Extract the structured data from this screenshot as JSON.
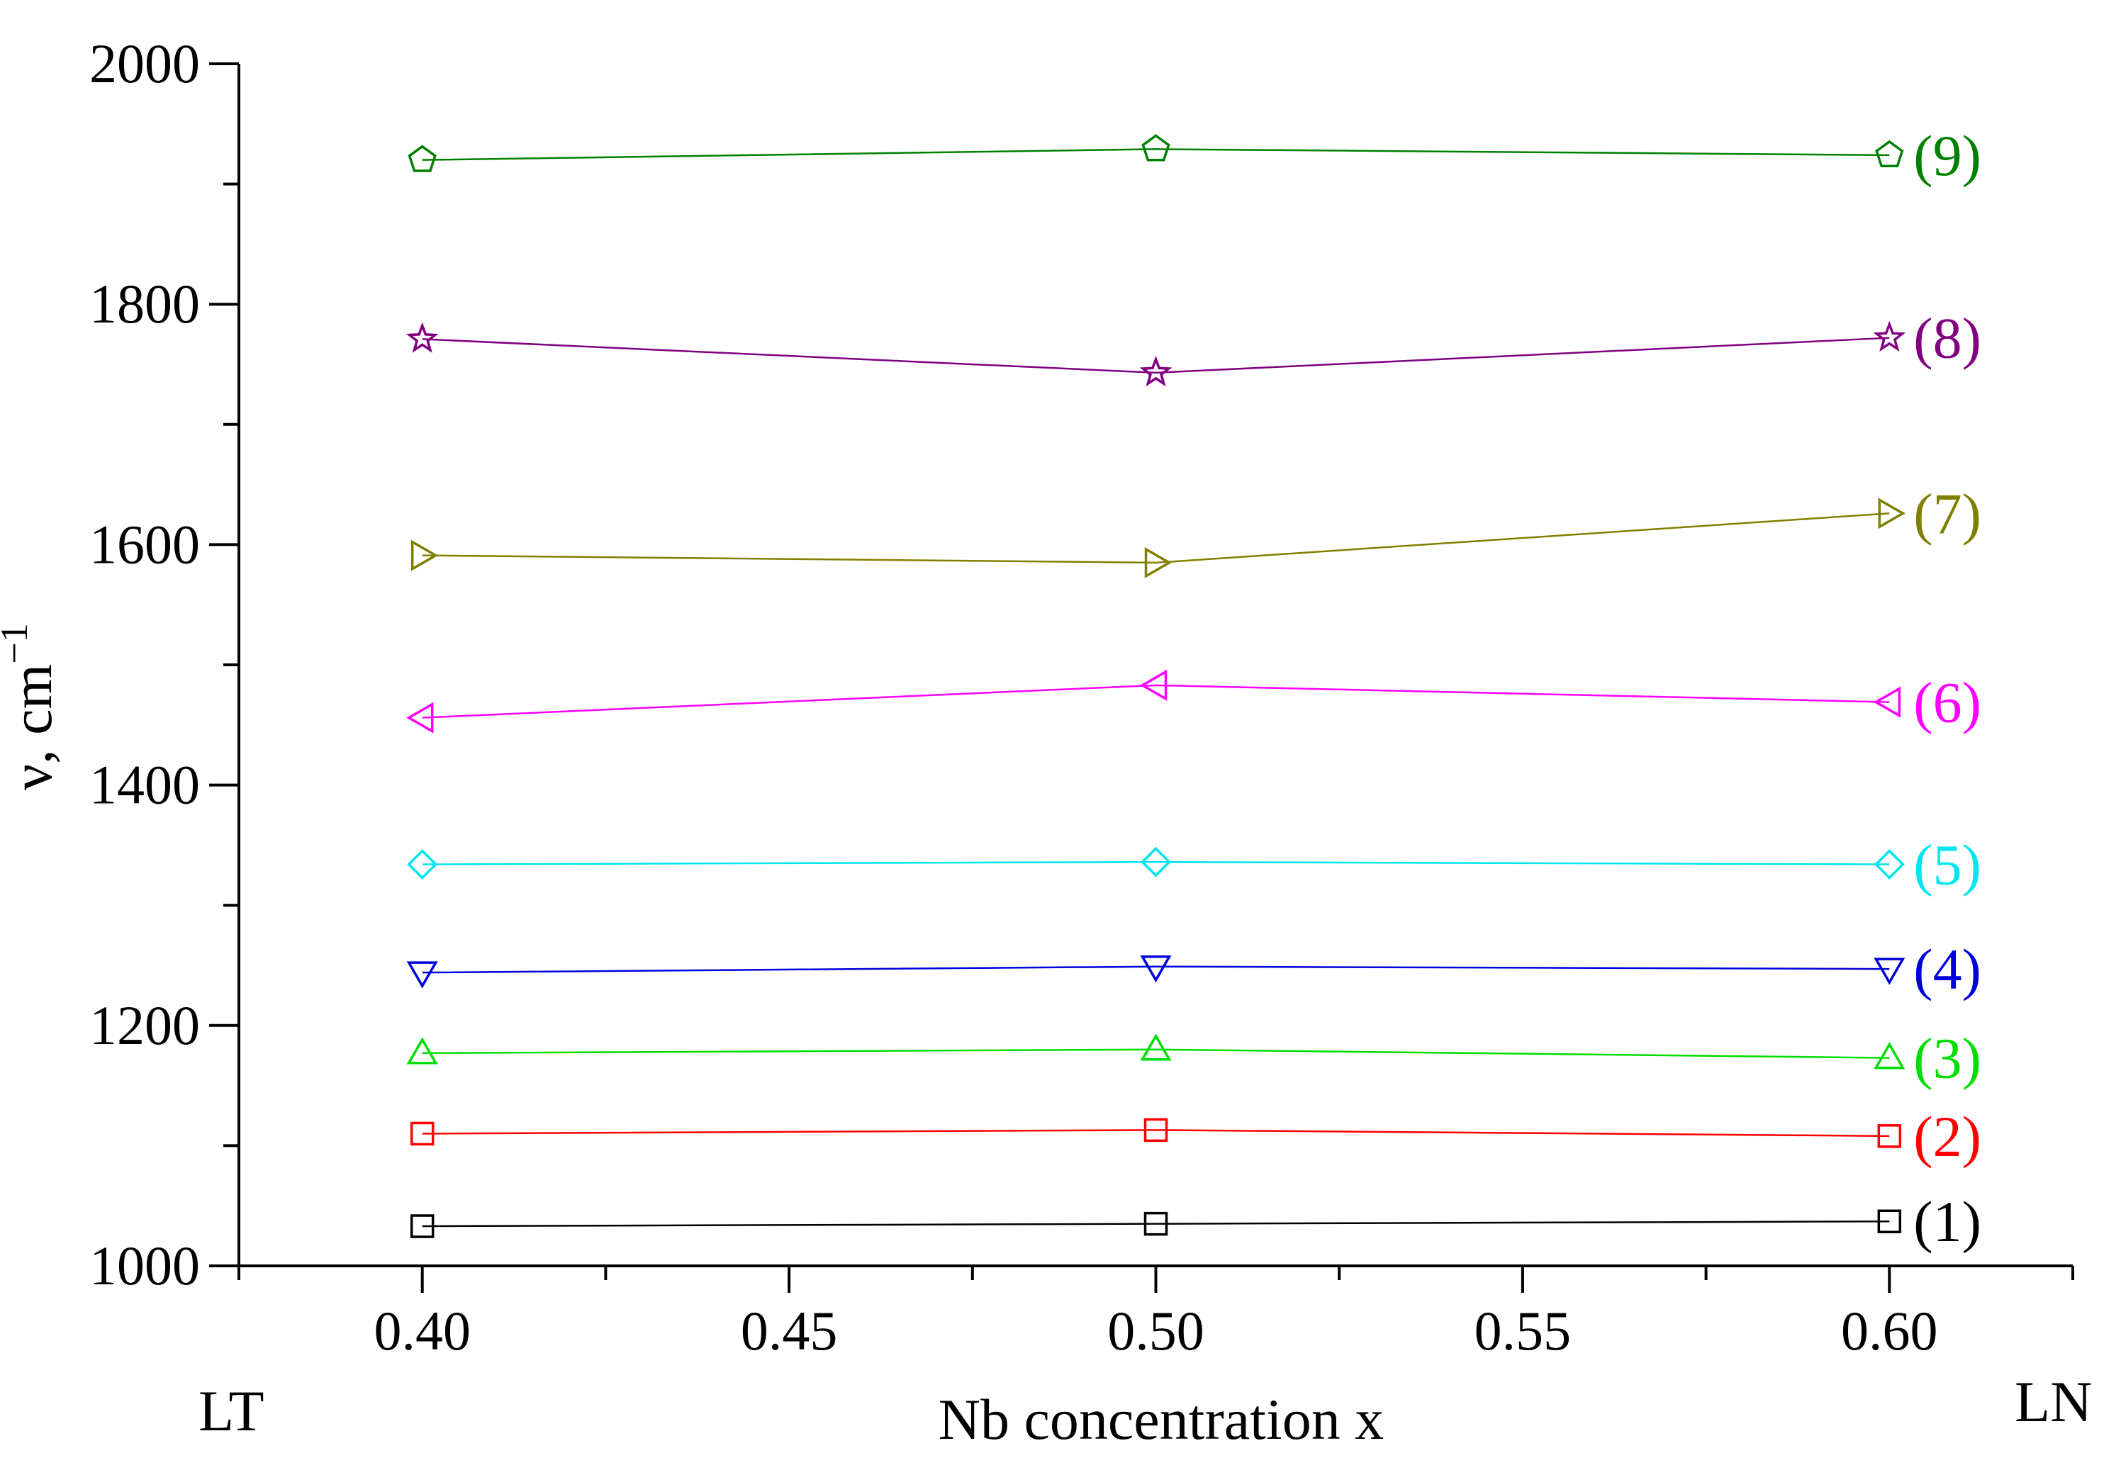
{
  "chart_data": {
    "type": "line",
    "title": "",
    "xlabel": "Nb concentration x",
    "ylabel": "ν, cm",
    "ylabel_exponent": "−1",
    "xlim": [
      0.375,
      0.625
    ],
    "ylim": [
      1000,
      2000
    ],
    "xticks": [
      "0.40",
      "0.45",
      "0.50",
      "0.55",
      "0.60"
    ],
    "yticks": [
      "1000",
      "1200",
      "1400",
      "1600",
      "1800",
      "2000"
    ],
    "x_end_labels": {
      "left": "LT",
      "right": "LN"
    },
    "x": [
      0.4,
      0.5,
      0.6
    ],
    "series": [
      {
        "name": "(1)",
        "marker": "square",
        "color": "#000000",
        "values": [
          1033,
          1035,
          1037
        ]
      },
      {
        "name": "(2)",
        "marker": "square",
        "color": "#ff0000",
        "values": [
          1110,
          1113,
          1108
        ]
      },
      {
        "name": "(3)",
        "marker": "triangle-up",
        "color": "#00dd00",
        "values": [
          1177,
          1180,
          1173
        ]
      },
      {
        "name": "(4)",
        "marker": "triangle-down",
        "color": "#0000dd",
        "values": [
          1244,
          1249,
          1247
        ]
      },
      {
        "name": "(5)",
        "marker": "diamond",
        "color": "#00e5ee",
        "values": [
          1334,
          1336,
          1334
        ]
      },
      {
        "name": "(6)",
        "marker": "triangle-left",
        "color": "#ff00ff",
        "values": [
          1456,
          1483,
          1469
        ]
      },
      {
        "name": "(7)",
        "marker": "triangle-right",
        "color": "#808000",
        "values": [
          1591,
          1585,
          1626
        ]
      },
      {
        "name": "(8)",
        "marker": "star",
        "color": "#800080",
        "values": [
          1771,
          1743,
          1772
        ]
      },
      {
        "name": "(9)",
        "marker": "pentagon",
        "color": "#008000",
        "values": [
          1920,
          1929,
          1924
        ]
      }
    ]
  }
}
